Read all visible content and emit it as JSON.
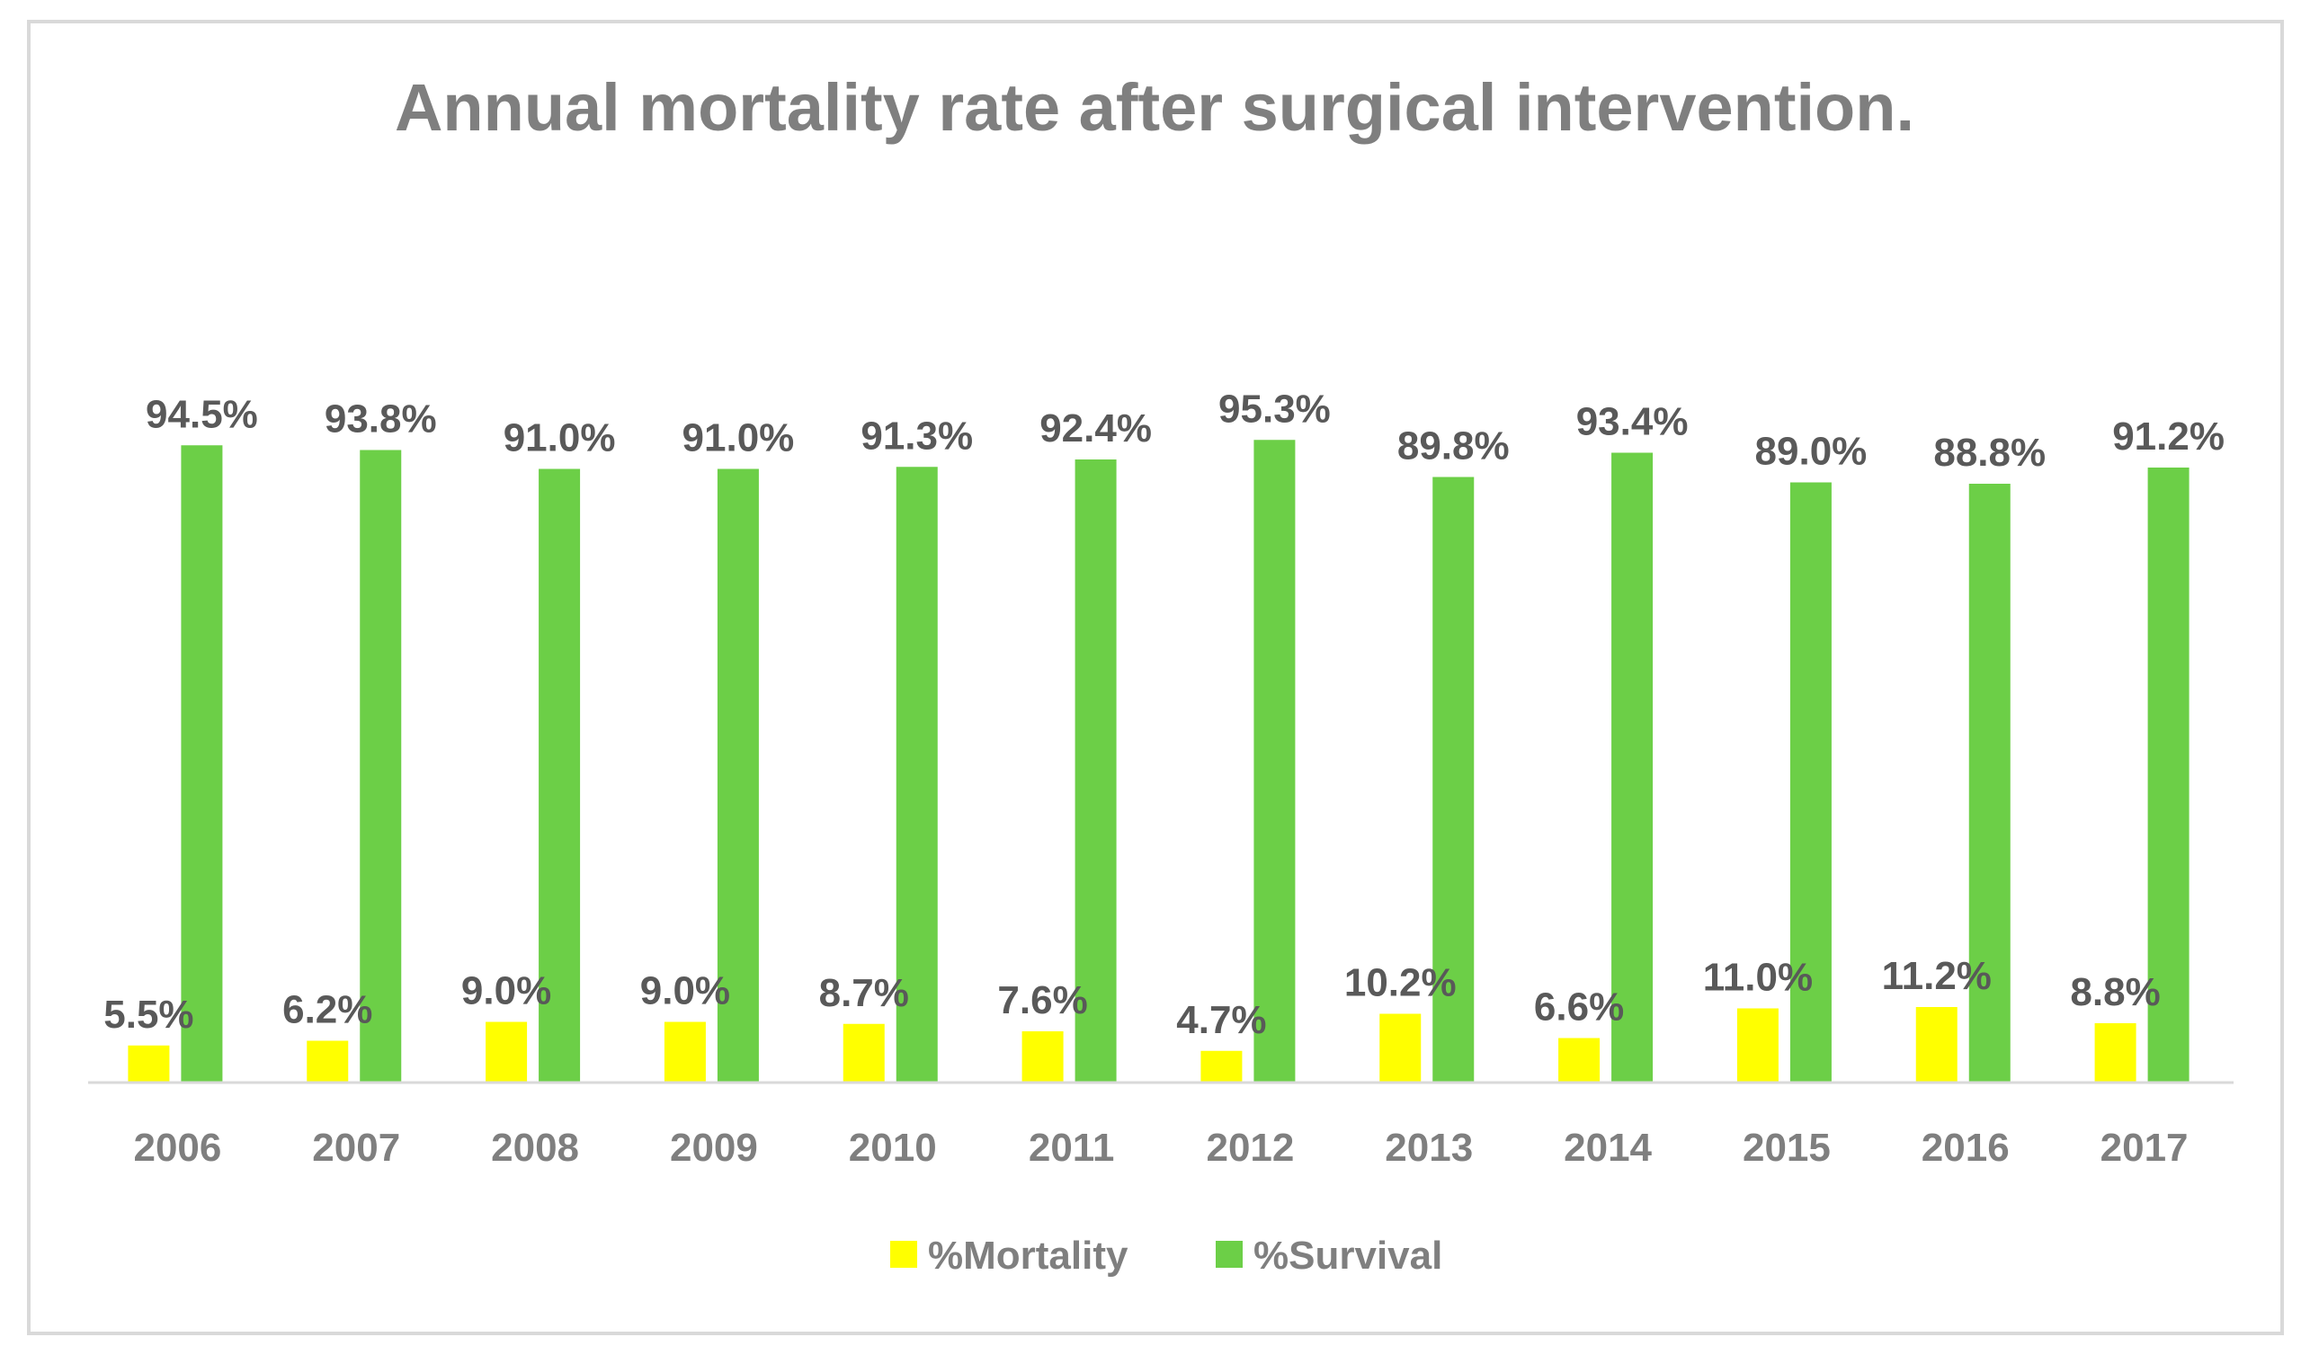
{
  "chart_data": {
    "type": "bar",
    "title": "Annual mortality rate after surgical intervention.",
    "xlabel": "",
    "ylabel": "",
    "ylim": [
      0,
      100
    ],
    "grid": false,
    "legend_position": "bottom",
    "categories": [
      "2006",
      "2007",
      "2008",
      "2009",
      "2010",
      "2011",
      "2012",
      "2013",
      "2014",
      "2015",
      "2016",
      "2017"
    ],
    "series": [
      {
        "name": "%Mortality",
        "color": "#ffff00",
        "values": [
          5.5,
          6.2,
          9.0,
          9.0,
          8.7,
          7.6,
          4.7,
          10.2,
          6.6,
          11.0,
          11.2,
          8.8
        ],
        "labels": [
          "5.5%",
          "6.2%",
          "9.0%",
          "9.0%",
          "8.7%",
          "7.6%",
          "4.7%",
          "10.2%",
          "6.6%",
          "11.0%",
          "11.2%",
          "8.8%"
        ]
      },
      {
        "name": "%Survival",
        "color": "#6ccf47",
        "values": [
          94.5,
          93.8,
          91.0,
          91.0,
          91.3,
          92.4,
          95.3,
          89.8,
          93.4,
          89.0,
          88.8,
          91.2
        ],
        "labels": [
          "94.5%",
          "93.8%",
          "91.0%",
          "91.0%",
          "91.3%",
          "92.4%",
          "95.3%",
          "89.8%",
          "93.4%",
          "89.0%",
          "88.8%",
          "91.2%"
        ]
      }
    ]
  }
}
